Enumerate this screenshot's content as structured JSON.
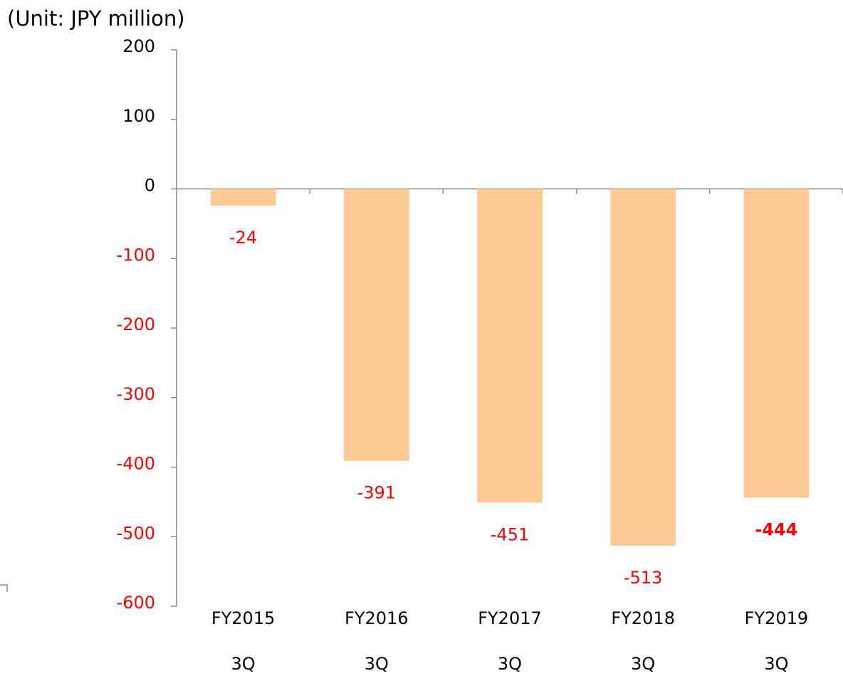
{
  "chart_data": {
    "type": "bar",
    "y_label": "(Unit: JPY million)",
    "categories": [
      "FY2015\n3Q",
      "FY2016\n3Q",
      "FY2017\n3Q",
      "FY2018\n3Q",
      "FY2019\n3Q"
    ],
    "values": [
      -24,
      -391,
      -451,
      -513,
      -444
    ],
    "color": "#fdc994",
    "negative_label_color": "#ff0000",
    "bold_label_index": 4,
    "ylim": [
      -600,
      200
    ],
    "yticks": [
      -600,
      -500,
      -400,
      -300,
      -200,
      -100,
      0,
      100,
      200
    ],
    "grid": false
  }
}
